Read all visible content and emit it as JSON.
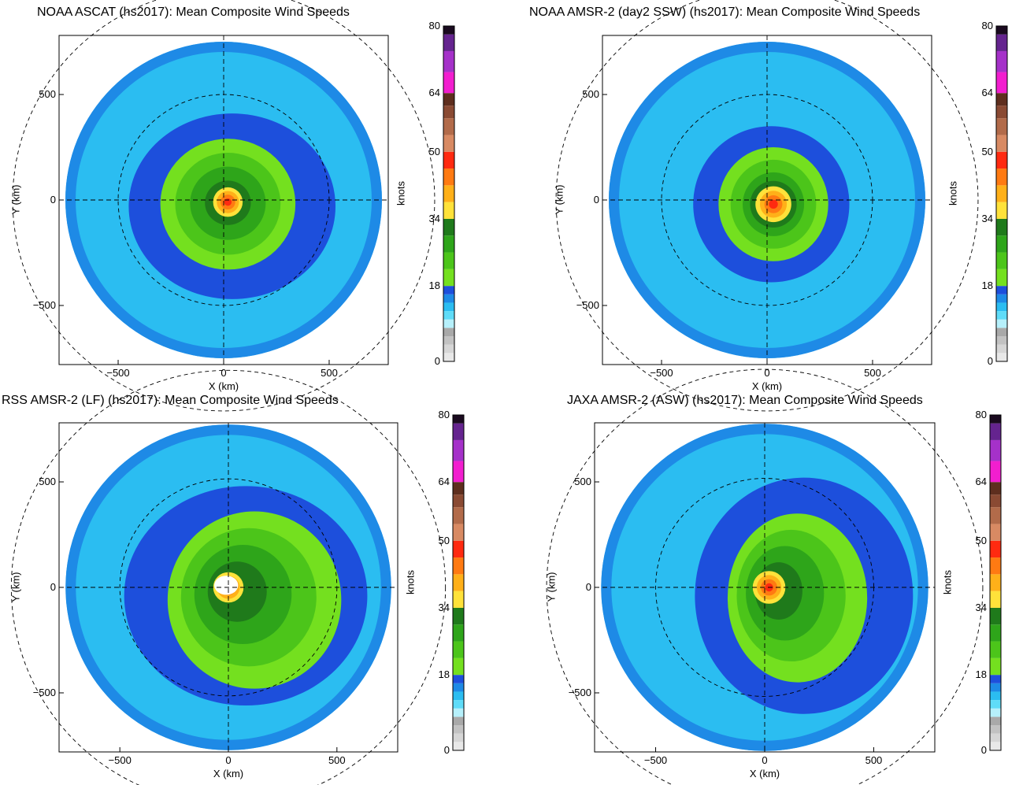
{
  "colorbar": {
    "unit": "knots",
    "ticks": [
      0,
      18,
      34,
      50,
      64,
      80
    ],
    "range": [
      0,
      80
    ],
    "bands": [
      {
        "from": 0,
        "to": 2,
        "color": "#e8e8e8"
      },
      {
        "from": 2,
        "to": 4,
        "color": "#d6d6d6"
      },
      {
        "from": 4,
        "to": 6,
        "color": "#c2c2c2"
      },
      {
        "from": 6,
        "to": 8,
        "color": "#a9a9a9"
      },
      {
        "from": 8,
        "to": 10,
        "color": "#b6f0fb"
      },
      {
        "from": 10,
        "to": 12,
        "color": "#5fdcf8"
      },
      {
        "from": 12,
        "to": 14,
        "color": "#2bbdf1"
      },
      {
        "from": 14,
        "to": 16,
        "color": "#1e8ae6"
      },
      {
        "from": 16,
        "to": 18,
        "color": "#1d4fdc"
      },
      {
        "from": 18,
        "to": 22,
        "color": "#74e01f"
      },
      {
        "from": 22,
        "to": 26,
        "color": "#4cc51a"
      },
      {
        "from": 26,
        "to": 30,
        "color": "#2ea51a"
      },
      {
        "from": 30,
        "to": 34,
        "color": "#1f7a1b"
      },
      {
        "from": 34,
        "to": 38,
        "color": "#ffe23a"
      },
      {
        "from": 38,
        "to": 42,
        "color": "#ffb019"
      },
      {
        "from": 42,
        "to": 46,
        "color": "#ff7a12"
      },
      {
        "from": 46,
        "to": 50,
        "color": "#ff2a10"
      },
      {
        "from": 50,
        "to": 54,
        "color": "#d88a63"
      },
      {
        "from": 54,
        "to": 58,
        "color": "#b26b4a"
      },
      {
        "from": 58,
        "to": 61,
        "color": "#8a4a33"
      },
      {
        "from": 61,
        "to": 64,
        "color": "#5e2e1e"
      },
      {
        "from": 64,
        "to": 69,
        "color": "#f21ecf"
      },
      {
        "from": 69,
        "to": 74,
        "color": "#a531c9"
      },
      {
        "from": 74,
        "to": 78,
        "color": "#65248f"
      },
      {
        "from": 78,
        "to": 80,
        "color": "#1a0a1f"
      }
    ]
  },
  "chart_data": [
    {
      "type": "heatmap",
      "title": "NOAA ASCAT (hs2017): Mean Composite Wind Speeds",
      "xlabel": "X (km)",
      "ylabel": "Y (km)",
      "xlim": [
        -780,
        780
      ],
      "ylim": [
        -780,
        780
      ],
      "xticks": [
        -500,
        0,
        500
      ],
      "yticks": [
        -500,
        0,
        500
      ],
      "domain_radius_km": 750,
      "inner_ring_km": 500,
      "core": {
        "x": 20,
        "y": -10,
        "r": 70,
        "max_kt": 44
      },
      "green_region": {
        "x": 20,
        "y": -20,
        "rx": 320,
        "ry": 310
      },
      "dark_blue_ring": {
        "x": 40,
        "y": -30,
        "rx": 490,
        "ry": 440
      },
      "blue_edge": {
        "x": 0,
        "y": 0,
        "r": 750
      }
    },
    {
      "type": "heatmap",
      "title": "NOAA AMSR-2 (day2 SSW) (hs2017): Mean Composite Wind Speeds",
      "xlabel": "X (km)",
      "ylabel": "Y (km)",
      "xlim": [
        -780,
        780
      ],
      "ylim": [
        -780,
        780
      ],
      "xticks": [
        -500,
        0,
        500
      ],
      "yticks": [
        -500,
        0,
        500
      ],
      "domain_radius_km": 750,
      "inner_ring_km": 500,
      "core": {
        "x": 30,
        "y": -20,
        "r": 85,
        "max_kt": 44
      },
      "green_region": {
        "x": 30,
        "y": -20,
        "rx": 260,
        "ry": 270
      },
      "dark_blue_ring": {
        "x": 20,
        "y": -20,
        "rx": 370,
        "ry": 370
      },
      "blue_edge": {
        "x": 0,
        "y": 0,
        "r": 750
      }
    },
    {
      "type": "heatmap",
      "title": "RSS AMSR-2 (LF) (hs2017): Mean Composite Wind Speeds",
      "xlabel": "X (km)",
      "ylabel": "Y (km)",
      "xlim": [
        -780,
        780
      ],
      "ylim": [
        -780,
        780
      ],
      "xticks": [
        -500,
        0,
        500
      ],
      "yticks": [
        -500,
        0,
        500
      ],
      "domain_radius_km": 750,
      "inner_ring_km": 500,
      "core": {
        "x": 0,
        "y": 0,
        "r": 70,
        "max_kt": 40
      },
      "green_region": {
        "x": 120,
        "y": -60,
        "rx": 400,
        "ry": 420
      },
      "dark_blue_ring": {
        "x": 80,
        "y": -40,
        "rx": 560,
        "ry": 520
      },
      "blue_edge": {
        "x": 0,
        "y": 0,
        "r": 750
      }
    },
    {
      "type": "heatmap",
      "title": "JAXA AMSR-2 (ASW) (hs2017): Mean Composite Wind Speeds",
      "xlabel": "X (km)",
      "ylabel": "Y (km)",
      "xlim": [
        -780,
        780
      ],
      "ylim": [
        -780,
        780
      ],
      "xticks": [
        -500,
        0,
        500
      ],
      "yticks": [
        -500,
        0,
        500
      ],
      "domain_radius_km": 750,
      "inner_ring_km": 500,
      "core": {
        "x": 20,
        "y": 0,
        "r": 75,
        "max_kt": 46
      },
      "green_region": {
        "x": 150,
        "y": -50,
        "rx": 320,
        "ry": 400
      },
      "dark_blue_ring": {
        "x": 180,
        "y": -40,
        "rx": 500,
        "ry": 560
      },
      "blue_edge": {
        "x": 0,
        "y": 0,
        "r": 750
      }
    }
  ]
}
